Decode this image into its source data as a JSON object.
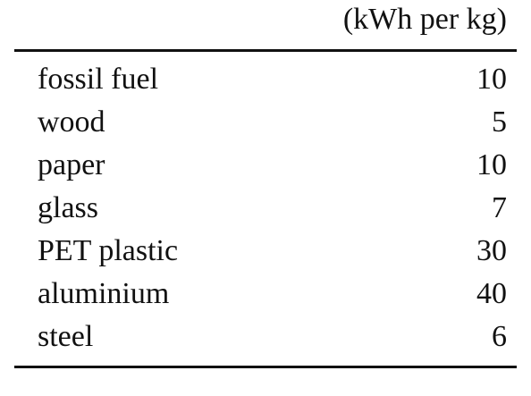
{
  "table": {
    "header": "(kWh per kg)",
    "rows": [
      [
        "fossil fuel",
        10
      ],
      [
        "wood",
        5
      ],
      [
        "paper",
        10
      ],
      [
        "glass",
        7
      ],
      [
        "PET plastic",
        30
      ],
      [
        "aluminium",
        40
      ],
      [
        "steel",
        6
      ]
    ]
  }
}
